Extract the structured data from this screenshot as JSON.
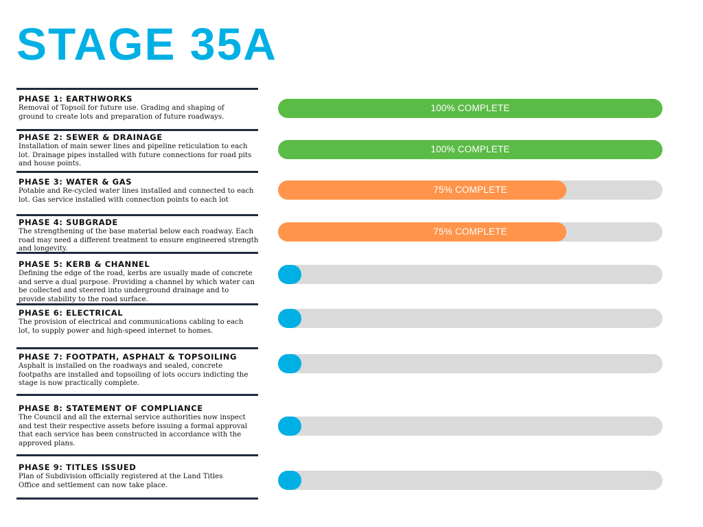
{
  "title": "STAGE 35A",
  "colors": {
    "title": "#00B0E4",
    "complete": "#5BBB47",
    "in_progress": "#FF944A",
    "not_started_knob": "#00B0E4",
    "track": "#DADADA",
    "rule": "#1F2A3C"
  },
  "phases": [
    {
      "title": "PHASE 1: EARTHWORKS",
      "description": "Removal of Topsoil for future use. Grading and shaping of ground to create lots and preparation of future roadways.",
      "progress_percent": 100,
      "status_label": "100% COMPLETE"
    },
    {
      "title": "PHASE 2: SEWER & DRAINAGE",
      "description": "Installation of main sewer lines and pipeline reticulation to each lot. Drainage pipes installed with future connections for road pits and house points.",
      "progress_percent": 100,
      "status_label": "100% COMPLETE"
    },
    {
      "title": "PHASE 3: WATER & GAS",
      "description": "Potable and Re-cycled water lines installed and connected to each lot. Gas service installed with connection points to each lot",
      "progress_percent": 75,
      "status_label": "75% COMPLETE"
    },
    {
      "title": "PHASE 4: SUBGRADE",
      "description": "The strengthening of the base material below each roadway. Each road may need a different treatment to ensure engineered strength and longevity.",
      "progress_percent": 75,
      "status_label": "75% COMPLETE"
    },
    {
      "title": "PHASE 5: KERB & CHANNEL",
      "description": "Defining the edge of the road, kerbs are usually made of concrete and serve a dual purpose. Providing a channel by which water can be collected and steered into underground drainage and to provide stability to the road surface.",
      "progress_percent": 0,
      "status_label": ""
    },
    {
      "title": "PHASE 6: ELECTRICAL",
      "description": "The provision of electrical and communications cabling to each lot, to supply power and high-speed internet to homes.",
      "progress_percent": 0,
      "status_label": ""
    },
    {
      "title": "PHASE 7: FOOTPATH, ASPHALT & TOPSOILING",
      "description": "Asphalt is installed on the roadways and sealed, concrete footpaths are installed and topsoiling of lots occurs indicting the stage is now practically complete.",
      "progress_percent": 0,
      "status_label": ""
    },
    {
      "title": "PHASE 8: STATEMENT OF COMPLIANCE",
      "description": "The Council and all the external service authorities now inspect and test their respective assets before issuing a formal approval that each service has been constructed in accordance with the approved plans.",
      "progress_percent": 0,
      "status_label": ""
    },
    {
      "title": "PHASE 9: TITLES ISSUED",
      "description": "Plan of Subdivision officially registered at the Land Titles Office and settlement can now take place.",
      "progress_percent": 0,
      "status_label": ""
    }
  ]
}
